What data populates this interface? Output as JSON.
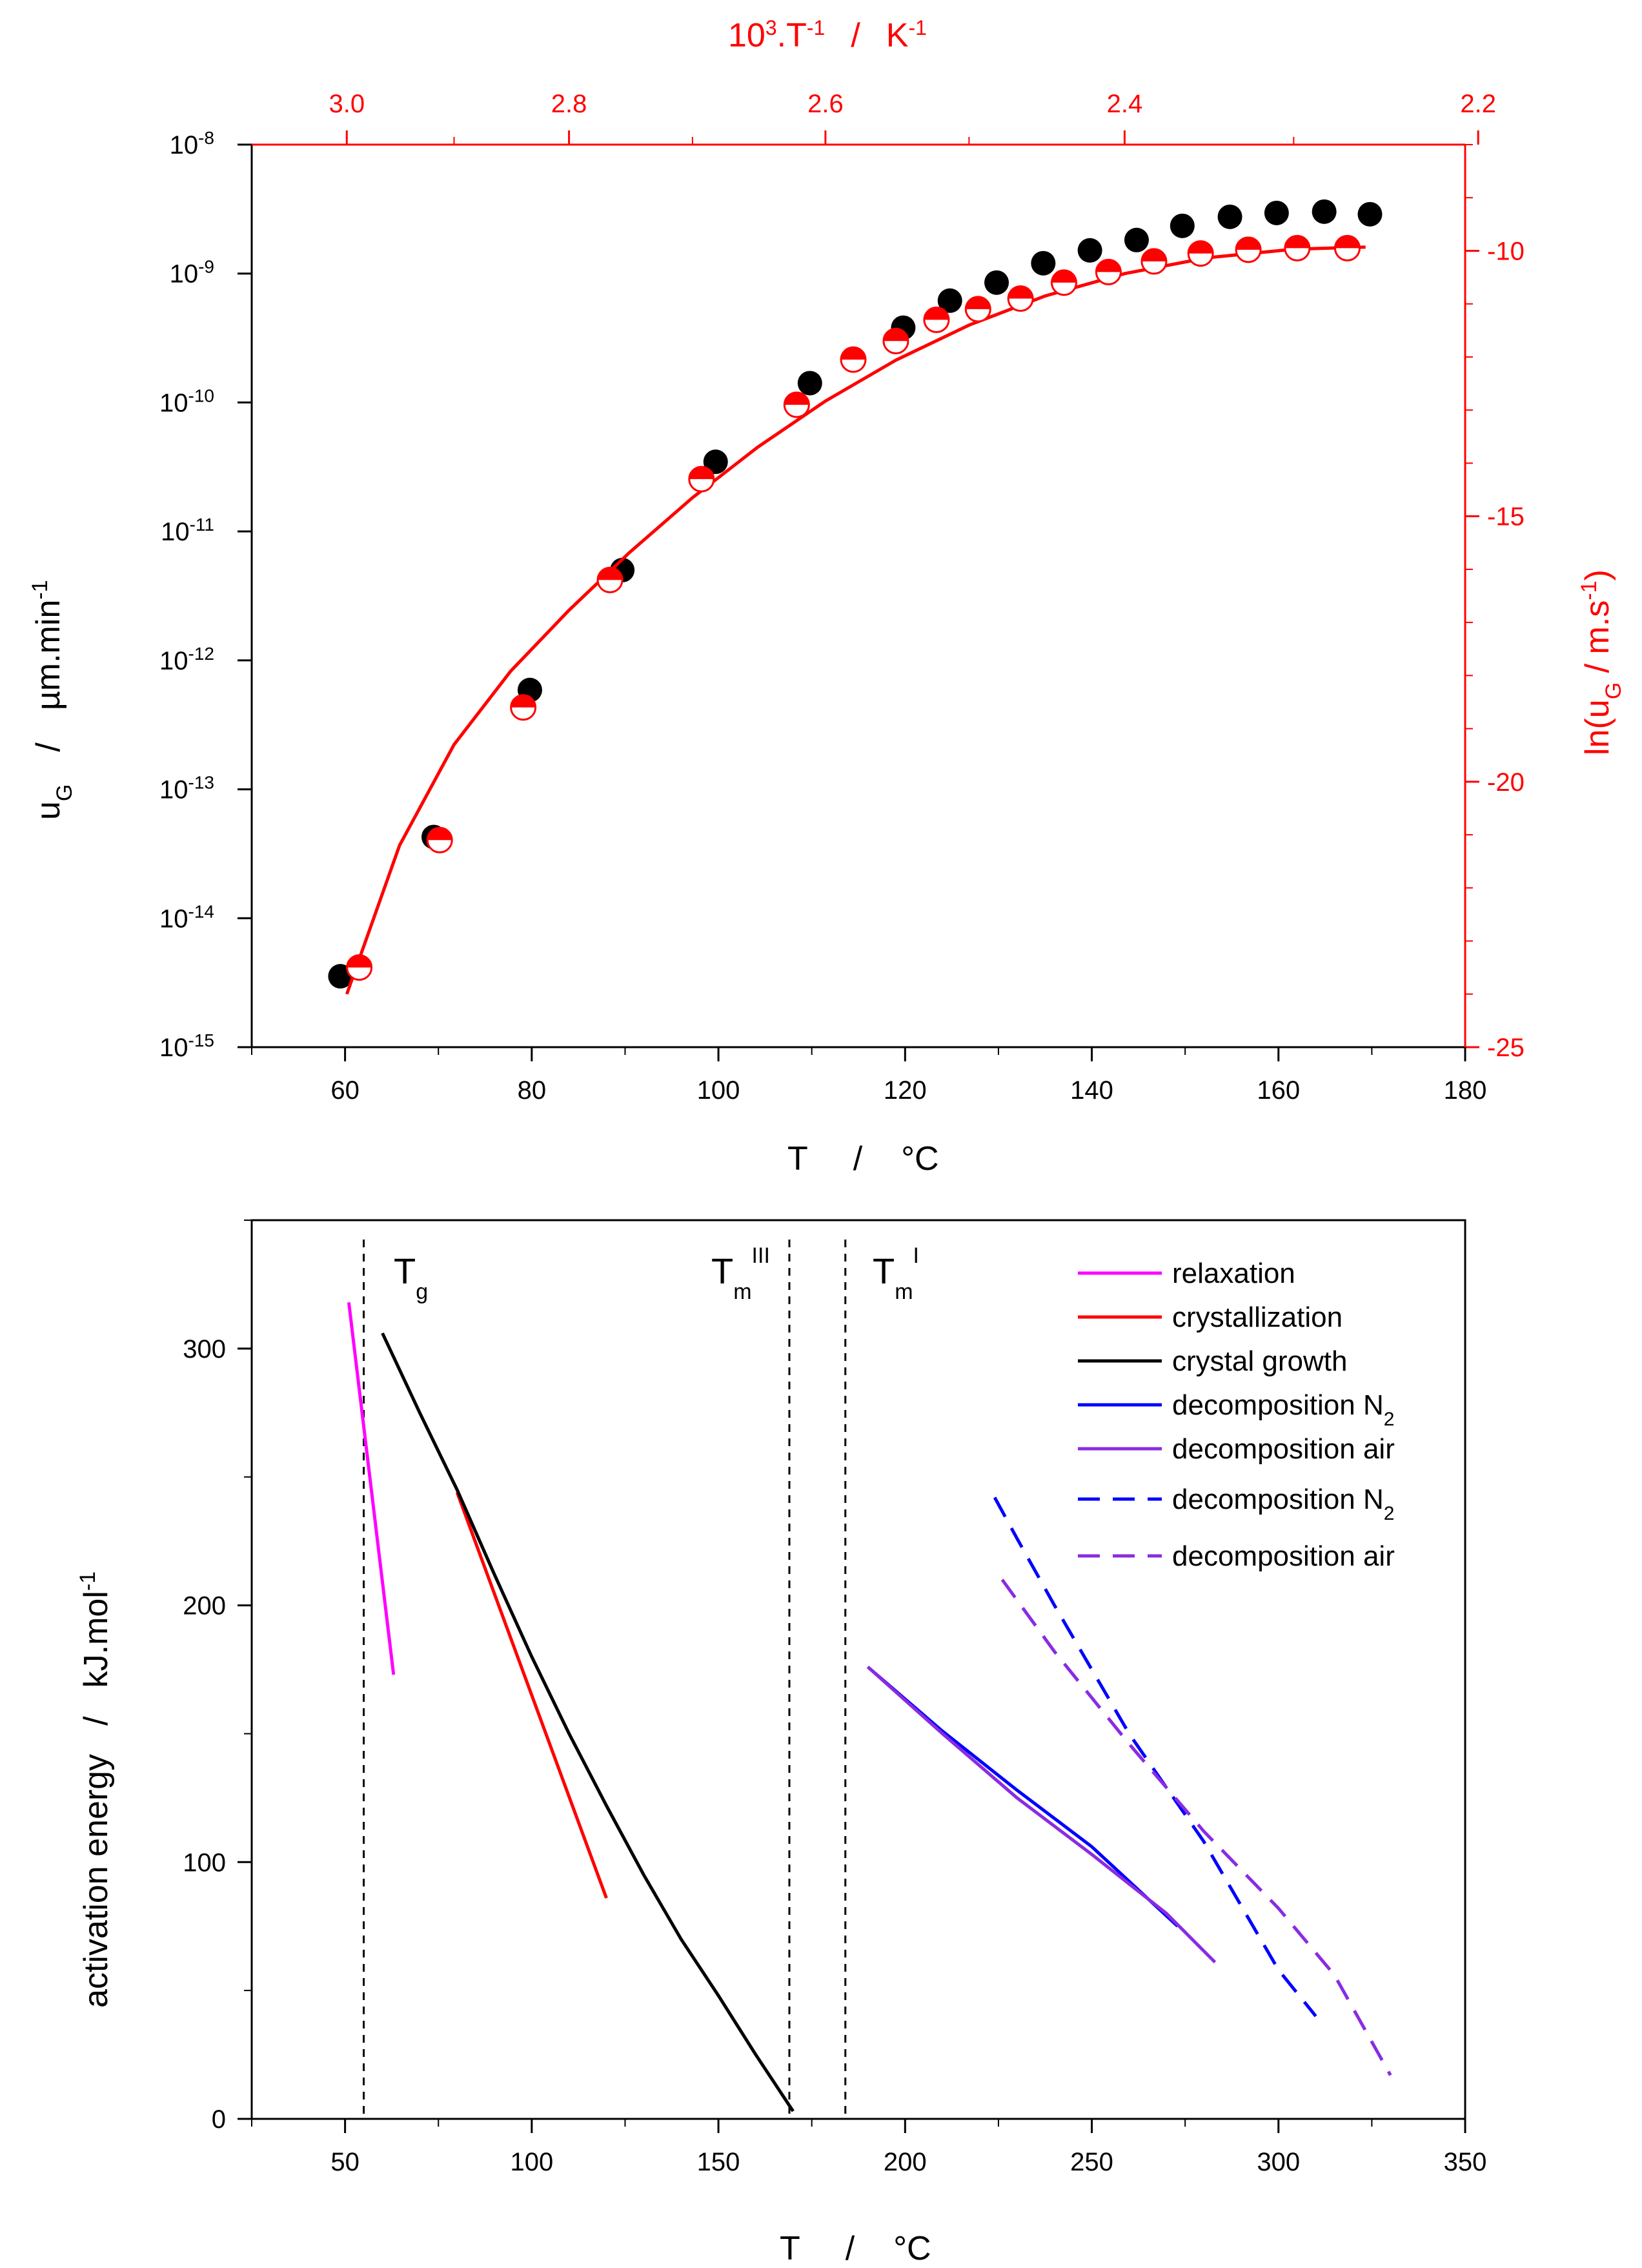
{
  "colors": {
    "red": "#ff0000",
    "black": "#000000",
    "relaxation": "#ff00ff",
    "crystallization": "#ff0000",
    "crystal_growth": "#000000",
    "decomposition_N2": "#0000ff",
    "decomposition_air": "#8a2be2"
  },
  "chart_data": [
    {
      "type": "scatter",
      "title": "",
      "xlabel": "T / °C",
      "xlabel_parts": {
        "sym": "T",
        "sep": "/",
        "unit": "°C"
      },
      "xlim": [
        50,
        180
      ],
      "xticks": [
        60,
        80,
        100,
        120,
        140,
        160,
        180
      ],
      "ylabel_left": "u_G / µm.min^-1",
      "ylabel_left_parts": {
        "u": "u",
        "usub": "G",
        "sep": "/",
        "unit": "µm.min",
        "sup": "-1"
      },
      "ylim_left_log10": [
        -15,
        -8
      ],
      "yticks_left": [
        {
          "base": "10",
          "exp": "-8"
        },
        {
          "base": "10",
          "exp": "-9"
        },
        {
          "base": "10",
          "exp": "-10"
        },
        {
          "base": "10",
          "exp": "-11"
        },
        {
          "base": "10",
          "exp": "-12"
        },
        {
          "base": "10",
          "exp": "-13"
        },
        {
          "base": "10",
          "exp": "-14"
        },
        {
          "base": "10",
          "exp": "-15"
        }
      ],
      "ylabel_right": "ln(u_G / m.s^-1)",
      "ylabel_right_parts": {
        "pre": "ln(u",
        "sub": "G",
        "mid": " / m.s",
        "sup": "-1",
        "post": ")"
      },
      "ylim_right": [
        -25,
        -8
      ],
      "yticks_right": [
        -10,
        -15,
        -20,
        -25
      ],
      "xlabel_top": "10^3.T^-1 / K^-1",
      "xlabel_top_parts": {
        "a": "10",
        "a_sup": "3",
        "b": ".T",
        "b_sup": "-1",
        "sep": "/",
        "c": "K",
        "c_sup": "-1"
      },
      "xlim_top_reference": "top axis is 1000/(T+273.15) aligned with bottom T axis",
      "xticks_top": [
        2.2,
        2.4,
        2.6,
        2.8,
        3.0
      ],
      "series": [
        {
          "name": "u_G (black filled circles, left log axis)",
          "axis": "left",
          "x": [
            59.5,
            69.5,
            79.8,
            89.7,
            99.7,
            109.8,
            119.8,
            124.8,
            129.8,
            134.8,
            139.8,
            144.8,
            149.7,
            154.8,
            159.8,
            164.9,
            169.8
          ],
          "log10_y": [
            -14.45,
            -13.37,
            -12.23,
            -11.3,
            -10.46,
            -9.85,
            -9.42,
            -9.21,
            -9.07,
            -8.92,
            -8.82,
            -8.74,
            -8.63,
            -8.56,
            -8.53,
            -8.52,
            -8.54
          ]
        },
        {
          "name": "ln(u_G) (red half-filled circles, right axis)",
          "axis": "right",
          "x_inverse": [
            2.988,
            2.913,
            2.839,
            2.766,
            2.693,
            2.621,
            2.58,
            2.55,
            2.522,
            2.494,
            2.466,
            2.438,
            2.41,
            2.382,
            2.354,
            2.326,
            2.298,
            2.27
          ],
          "y": [
            -23.5,
            -21.1,
            -18.6,
            -16.2,
            -14.3,
            -12.9,
            -12.05,
            -11.7,
            -11.3,
            -11.1,
            -10.9,
            -10.6,
            -10.4,
            -10.2,
            -10.05,
            -9.98,
            -9.95,
            -9.95
          ]
        },
        {
          "name": "ln(u_G) fit (red line)",
          "axis": "right",
          "type": "line",
          "x_inverse": [
            2.26,
            2.3,
            2.35,
            2.4,
            2.45,
            2.5,
            2.55,
            2.6,
            2.65,
            2.7,
            2.75,
            2.8,
            2.85,
            2.9,
            2.95,
            3.0
          ],
          "y": [
            -9.93,
            -9.97,
            -10.13,
            -10.43,
            -10.85,
            -11.4,
            -12.06,
            -12.83,
            -13.7,
            -14.65,
            -15.68,
            -16.77,
            -17.92,
            -19.3,
            -21.2,
            -24.0
          ]
        }
      ]
    },
    {
      "type": "line",
      "title": "",
      "xlabel": "T / °C",
      "xlabel_parts": {
        "sym": "T",
        "sep": "/",
        "unit": "°C"
      },
      "xlim": [
        25,
        350
      ],
      "xticks": [
        50,
        100,
        150,
        200,
        250,
        300,
        350
      ],
      "ylabel": "activation energy / kJ.mol^-1",
      "ylabel_parts": {
        "text": "activation energy",
        "sep": "/",
        "unit": "kJ.mol",
        "sup": "-1"
      },
      "ylim": [
        0,
        350
      ],
      "yticks": [
        0,
        100,
        200,
        300
      ],
      "annotations": [
        {
          "main": "T",
          "sub": "g",
          "sup": "",
          "x": 55
        },
        {
          "main": "T",
          "sub": "m",
          "sup": "III",
          "x": 169
        },
        {
          "main": "T",
          "sub": "m",
          "sup": "I",
          "x": 184
        }
      ],
      "legend_position": "top-right",
      "series": [
        {
          "name": "relaxation",
          "label": "relaxation",
          "sub": "",
          "color": "#ff00ff",
          "style": "solid",
          "x": [
            51,
            63
          ],
          "y": [
            318,
            173
          ]
        },
        {
          "name": "crystallization",
          "label": "crystallization",
          "sub": "",
          "color": "#ff0000",
          "style": "solid",
          "x": [
            80,
            120
          ],
          "y": [
            244,
            86
          ]
        },
        {
          "name": "crystal growth",
          "label": "crystal growth",
          "sub": "",
          "color": "#000000",
          "style": "solid",
          "x": [
            60,
            70,
            80,
            90,
            100,
            110,
            120,
            130,
            140,
            150,
            160,
            170
          ],
          "y": [
            306,
            275,
            245,
            212,
            180,
            150,
            122,
            95,
            70,
            48,
            25,
            3
          ]
        },
        {
          "name": "decomposition N2 (solid)",
          "label": "decomposition N",
          "sub": "2",
          "color": "#0000ff",
          "style": "solid",
          "x": [
            190,
            210,
            230,
            250,
            273
          ],
          "y": [
            176,
            151,
            128,
            106,
            75
          ]
        },
        {
          "name": "decomposition air (solid)",
          "label": "decomposition air",
          "sub": "",
          "color": "#8a2be2",
          "style": "solid",
          "x": [
            190,
            210,
            230,
            250,
            270,
            283
          ],
          "y": [
            176,
            150,
            125,
            103,
            80,
            61
          ]
        },
        {
          "name": "decomposition N2 (dashed)",
          "label": "decomposition N",
          "sub": "2",
          "color": "#0000ff",
          "style": "dashed",
          "x": [
            224,
            230,
            240,
            260,
            280,
            300,
            310
          ],
          "y": [
            242,
            226,
            200,
            150,
            108,
            58,
            40
          ]
        },
        {
          "name": "decomposition air (dashed)",
          "label": "decomposition air",
          "sub": "",
          "color": "#8a2be2",
          "style": "dashed",
          "x": [
            226,
            240,
            260,
            280,
            300,
            315,
            330
          ],
          "y": [
            210,
            182,
            146,
            112,
            82,
            56,
            17
          ]
        }
      ]
    }
  ]
}
